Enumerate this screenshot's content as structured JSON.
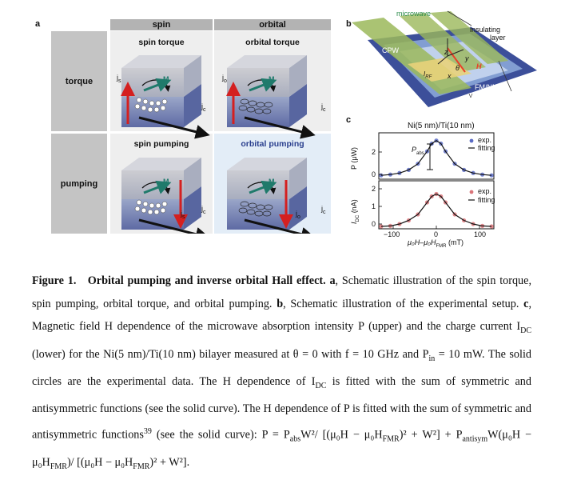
{
  "panel_a": {
    "letter": "a",
    "col_headers": [
      "spin",
      "orbital"
    ],
    "row_labels": [
      "torque",
      "pumping"
    ],
    "cells": [
      {
        "title": "spin torque",
        "jlabel": "j",
        "jsub": "s",
        "mlabel": "M",
        "jclabel": "j",
        "jcsub": "c"
      },
      {
        "title": "orbital torque",
        "jlabel": "j",
        "jsub": "o",
        "mlabel": "M",
        "jclabel": "j",
        "jcsub": "c"
      },
      {
        "title": "spin pumping",
        "jlabel": "j",
        "jsub": "s",
        "mlabel": "M",
        "jclabel": "j",
        "jcsub": "c"
      },
      {
        "title": "orbital pumping",
        "jlabel": "j",
        "jsub": "o",
        "mlabel": "M",
        "jclabel": "j",
        "jcsub": "c"
      }
    ]
  },
  "panel_b": {
    "letter": "b",
    "microwave": "microwave",
    "insulating": "insulating",
    "layer": "layer",
    "cpw": "CPW",
    "w": "w",
    "fm_nm": "FM/NM",
    "device": "device",
    "v": "V",
    "sub": "Si/SiO",
    "sub2": "2",
    "sub3": " sub.",
    "x": "x",
    "y": "y",
    "z": "z",
    "h": "H",
    "theta": "θ",
    "irf": "I",
    "irf_sub": "RF"
  },
  "panel_c": {
    "letter": "c",
    "title": "Ni(5 nm)/Ti(10 nm)",
    "upper_ylabel": "P (μW)",
    "lower_ylabel": "I",
    "lower_ylabel_sub": "DC",
    "lower_ylabel_unit": " (nA)",
    "pabs": "P",
    "pabs_sub": "abs",
    "legend_exp": "exp.",
    "legend_fit": "fitting",
    "xlabel": "μ₀H–μ₀H",
    "xlabel_sub": "FMR",
    "xlabel_unit": " (mT)",
    "upper_yticks": [
      "0",
      "2"
    ],
    "lower_yticks": [
      "0",
      "1",
      "2"
    ],
    "xticks": [
      "−100",
      "0",
      "100"
    ]
  },
  "chart_data": [
    {
      "type": "scatter",
      "series": [
        {
          "name": "exp.",
          "color": "#5a6bc4"
        },
        {
          "name": "fitting",
          "color": "#111111"
        }
      ],
      "x": [
        -120,
        -100,
        -80,
        -60,
        -40,
        -20,
        -10,
        0,
        10,
        20,
        40,
        60,
        80,
        100,
        120
      ],
      "values": [
        0.25,
        0.3,
        0.4,
        0.6,
        1.0,
        1.8,
        2.3,
        2.5,
        2.3,
        1.8,
        1.0,
        0.6,
        0.4,
        0.3,
        0.25
      ],
      "xlabel": "μ₀H–μ₀H_FMR (mT)",
      "ylabel": "P (μW)",
      "xlim": [
        -125,
        125
      ],
      "ylim": [
        0,
        3
      ]
    },
    {
      "type": "scatter",
      "series": [
        {
          "name": "exp.",
          "color": "#d9757a"
        },
        {
          "name": "fitting",
          "color": "#111111"
        }
      ],
      "x": [
        -120,
        -100,
        -80,
        -60,
        -40,
        -20,
        -10,
        0,
        10,
        20,
        40,
        60,
        80,
        100,
        120
      ],
      "values": [
        0.1,
        0.12,
        0.2,
        0.35,
        0.6,
        1.1,
        1.35,
        1.45,
        1.35,
        1.1,
        0.6,
        0.35,
        0.2,
        0.12,
        0.1
      ],
      "xlabel": "μ₀H–μ₀H_FMR (mT)",
      "ylabel": "I_DC (nA)",
      "xlim": [
        -125,
        125
      ],
      "ylim": [
        0,
        2
      ]
    }
  ],
  "caption": {
    "fig": "Figure 1.",
    "title": "Orbital pumping and inverse orbital Hall effect.",
    "a_label": "a",
    "a_text": ", Schematic illustration of the spin torque, spin pumping, orbital torque, and orbital pumping.",
    "b_label": "b",
    "b_text": ", Schematic illustration of the experimental setup.",
    "c_label": "c",
    "c_text": ", Magnetic field H dependence of the microwave absorption intensity P (upper) and the charge current I",
    "dc": "DC",
    "c_text2": " (lower) for the Ni(5 nm)/Ti(10 nm) bilayer measured at θ = 0 with f = 10 GHz and P",
    "in": "in",
    "c_text3": " = 10 mW. The solid circles are the experimental data. The H dependence of I",
    "c_text4": " is fitted with the sum of symmetric and antisymmetric functions (see the solid curve). The H dependence of P is fitted with the sum of symmetric and antisymmetric functions",
    "ref": "39",
    "c_text5": " (see the solid curve): P = P",
    "abs": "abs",
    "formula1": "W²/ [(μ₀H − μ₀H",
    "fmr": "FMR",
    "formula2": ")² + W²] + P",
    "antisym": "antisym",
    "formula3": "W(μ₀H −",
    "formula4": "μ₀H",
    "formula5": ")/ [(μ₀H − μ₀H",
    "formula6": ")² + W²]."
  }
}
